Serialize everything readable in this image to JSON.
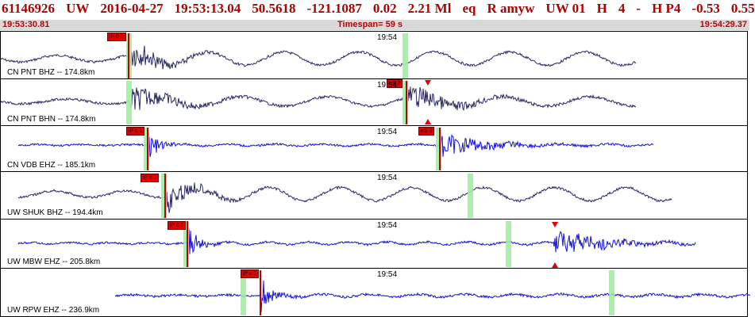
{
  "header": {
    "event_id": "61146926",
    "network": "UW",
    "date": "2016-04-27",
    "time": "19:53:13.04",
    "lat": "50.5618",
    "lon": "-121.1087",
    "depth": "0.02",
    "magnitude": "2.21 Ml",
    "type": "eq",
    "flags": "R amyw",
    "solution": "UW 01",
    "quality": "H",
    "count": "4",
    "dash": "-",
    "phase": "H P4",
    "val1": "-0.53",
    "val2": "0.55"
  },
  "subbar": {
    "start_time": "19:53:30.81",
    "timespan": "Timespan=  59 s",
    "end_time": "19:54:29.37"
  },
  "colors": {
    "title": "#b00000",
    "trace_dark": "#2a2a66",
    "trace_blue": "#1010dd",
    "pick": "#e00000",
    "window": "#9ff09f"
  },
  "panels": [
    {
      "station": "CN PNT BHZ -- 174.8km",
      "minute": "19:54",
      "picks": [
        "iP 0 1"
      ],
      "color": "trace_dark"
    },
    {
      "station": "CN PNT BHN -- 174.8km",
      "minute": "19:54",
      "picks": [
        "eS 2"
      ],
      "color": "trace_dark"
    },
    {
      "station": "CN VDB EHZ -- 185.1km",
      "minute": "19:54",
      "picks": [
        "iP c 1",
        "eS 3"
      ],
      "color": "trace_blue"
    },
    {
      "station": "UW SHUK BHZ -- 194.4km",
      "minute": "19:54",
      "picks": [
        "iP c 1"
      ],
      "color": "trace_dark"
    },
    {
      "station": "UW MBW EHZ -- 205.8km",
      "minute": "19:54",
      "picks": [
        "iP c 1"
      ],
      "color": "trace_blue"
    },
    {
      "station": "UW RPW EHZ -- 236.9km",
      "minute": "19:54",
      "picks": [
        "iP c 1"
      ],
      "color": "trace_blue"
    }
  ]
}
